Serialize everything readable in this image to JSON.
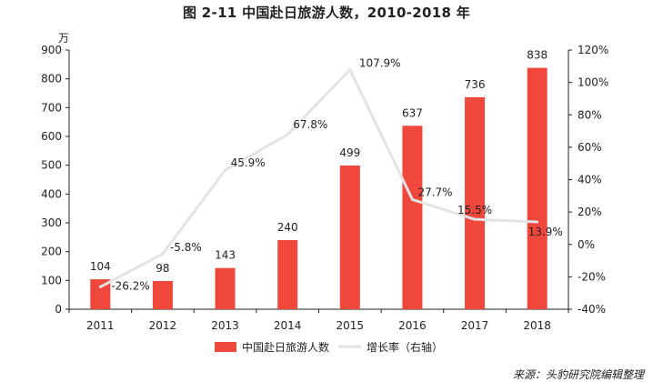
{
  "title": "图 2-11 中国赴日旅游人数，2010-2018 年",
  "source": "来源：头豹研究院编辑整理",
  "colors": {
    "bar": "#f0473c",
    "line": "#e3e3e3",
    "axis": "#222222"
  },
  "chart_data": {
    "type": "bar",
    "categories": [
      "2011",
      "2012",
      "2013",
      "2014",
      "2015",
      "2016",
      "2017",
      "2018"
    ],
    "series": [
      {
        "name": "中国赴日旅游人数",
        "type": "bar",
        "axis": "left",
        "values": [
          104,
          98,
          143,
          240,
          499,
          637,
          736,
          838
        ]
      },
      {
        "name": "增长率（右轴）",
        "type": "line",
        "axis": "right",
        "values": [
          -26.2,
          -5.8,
          45.9,
          67.8,
          107.9,
          27.7,
          15.5,
          13.9
        ],
        "labels": [
          "-26.2%",
          "-5.8%",
          "45.9%",
          "67.8%",
          "107.9%",
          "27.7%",
          "15.5%",
          "13.9%"
        ]
      }
    ],
    "yunit": "万",
    "ylim": [
      0,
      900
    ],
    "yticks": [
      "0",
      "100",
      "200",
      "300",
      "400",
      "500",
      "600",
      "700",
      "800",
      "900"
    ],
    "y2lim": [
      -40,
      120
    ],
    "y2ticks": [
      "-40%",
      "-20%",
      "0%",
      "20%",
      "40%",
      "60%",
      "80%",
      "100%",
      "120%"
    ],
    "legend_position": "bottom",
    "grid": false
  }
}
